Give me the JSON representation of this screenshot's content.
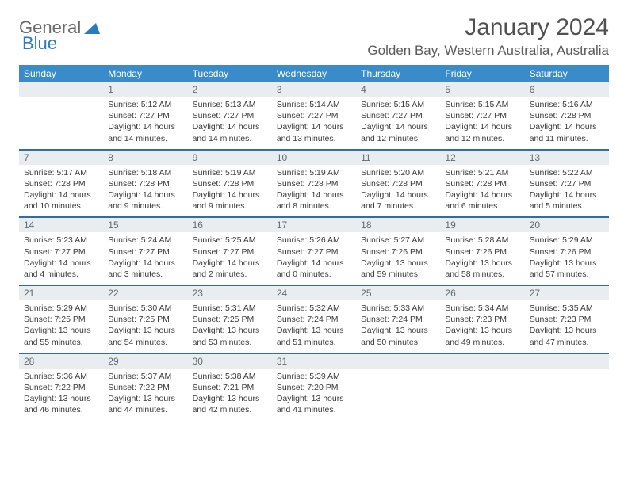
{
  "logo": {
    "general": "General",
    "blue": "Blue"
  },
  "title": "January 2024",
  "location": "Golden Bay, Western Australia, Australia",
  "colors": {
    "header_bg": "#3a8bc9",
    "header_text": "#ffffff",
    "daynum_bg": "#e9edef",
    "daynum_text": "#5f6b73",
    "body_text": "#3a3a3a",
    "week_divider": "#2b6fa8",
    "logo_blue": "#2b7bbf",
    "logo_gray": "#6a6a6a"
  },
  "fonts": {
    "title_size": 30,
    "location_size": 17,
    "header_size": 12,
    "daynum_size": 12,
    "body_size": 10.5
  },
  "day_names": [
    "Sunday",
    "Monday",
    "Tuesday",
    "Wednesday",
    "Thursday",
    "Friday",
    "Saturday"
  ],
  "weeks": [
    [
      null,
      {
        "n": "1",
        "sr": "5:12 AM",
        "ss": "7:27 PM",
        "dl": "14 hours and 14 minutes."
      },
      {
        "n": "2",
        "sr": "5:13 AM",
        "ss": "7:27 PM",
        "dl": "14 hours and 14 minutes."
      },
      {
        "n": "3",
        "sr": "5:14 AM",
        "ss": "7:27 PM",
        "dl": "14 hours and 13 minutes."
      },
      {
        "n": "4",
        "sr": "5:15 AM",
        "ss": "7:27 PM",
        "dl": "14 hours and 12 minutes."
      },
      {
        "n": "5",
        "sr": "5:15 AM",
        "ss": "7:27 PM",
        "dl": "14 hours and 12 minutes."
      },
      {
        "n": "6",
        "sr": "5:16 AM",
        "ss": "7:28 PM",
        "dl": "14 hours and 11 minutes."
      }
    ],
    [
      {
        "n": "7",
        "sr": "5:17 AM",
        "ss": "7:28 PM",
        "dl": "14 hours and 10 minutes."
      },
      {
        "n": "8",
        "sr": "5:18 AM",
        "ss": "7:28 PM",
        "dl": "14 hours and 9 minutes."
      },
      {
        "n": "9",
        "sr": "5:19 AM",
        "ss": "7:28 PM",
        "dl": "14 hours and 9 minutes."
      },
      {
        "n": "10",
        "sr": "5:19 AM",
        "ss": "7:28 PM",
        "dl": "14 hours and 8 minutes."
      },
      {
        "n": "11",
        "sr": "5:20 AM",
        "ss": "7:28 PM",
        "dl": "14 hours and 7 minutes."
      },
      {
        "n": "12",
        "sr": "5:21 AM",
        "ss": "7:28 PM",
        "dl": "14 hours and 6 minutes."
      },
      {
        "n": "13",
        "sr": "5:22 AM",
        "ss": "7:27 PM",
        "dl": "14 hours and 5 minutes."
      }
    ],
    [
      {
        "n": "14",
        "sr": "5:23 AM",
        "ss": "7:27 PM",
        "dl": "14 hours and 4 minutes."
      },
      {
        "n": "15",
        "sr": "5:24 AM",
        "ss": "7:27 PM",
        "dl": "14 hours and 3 minutes."
      },
      {
        "n": "16",
        "sr": "5:25 AM",
        "ss": "7:27 PM",
        "dl": "14 hours and 2 minutes."
      },
      {
        "n": "17",
        "sr": "5:26 AM",
        "ss": "7:27 PM",
        "dl": "14 hours and 0 minutes."
      },
      {
        "n": "18",
        "sr": "5:27 AM",
        "ss": "7:26 PM",
        "dl": "13 hours and 59 minutes."
      },
      {
        "n": "19",
        "sr": "5:28 AM",
        "ss": "7:26 PM",
        "dl": "13 hours and 58 minutes."
      },
      {
        "n": "20",
        "sr": "5:29 AM",
        "ss": "7:26 PM",
        "dl": "13 hours and 57 minutes."
      }
    ],
    [
      {
        "n": "21",
        "sr": "5:29 AM",
        "ss": "7:25 PM",
        "dl": "13 hours and 55 minutes."
      },
      {
        "n": "22",
        "sr": "5:30 AM",
        "ss": "7:25 PM",
        "dl": "13 hours and 54 minutes."
      },
      {
        "n": "23",
        "sr": "5:31 AM",
        "ss": "7:25 PM",
        "dl": "13 hours and 53 minutes."
      },
      {
        "n": "24",
        "sr": "5:32 AM",
        "ss": "7:24 PM",
        "dl": "13 hours and 51 minutes."
      },
      {
        "n": "25",
        "sr": "5:33 AM",
        "ss": "7:24 PM",
        "dl": "13 hours and 50 minutes."
      },
      {
        "n": "26",
        "sr": "5:34 AM",
        "ss": "7:23 PM",
        "dl": "13 hours and 49 minutes."
      },
      {
        "n": "27",
        "sr": "5:35 AM",
        "ss": "7:23 PM",
        "dl": "13 hours and 47 minutes."
      }
    ],
    [
      {
        "n": "28",
        "sr": "5:36 AM",
        "ss": "7:22 PM",
        "dl": "13 hours and 46 minutes."
      },
      {
        "n": "29",
        "sr": "5:37 AM",
        "ss": "7:22 PM",
        "dl": "13 hours and 44 minutes."
      },
      {
        "n": "30",
        "sr": "5:38 AM",
        "ss": "7:21 PM",
        "dl": "13 hours and 42 minutes."
      },
      {
        "n": "31",
        "sr": "5:39 AM",
        "ss": "7:20 PM",
        "dl": "13 hours and 41 minutes."
      },
      null,
      null,
      null
    ]
  ],
  "labels": {
    "sunrise": "Sunrise:",
    "sunset": "Sunset:",
    "daylight": "Daylight:"
  }
}
